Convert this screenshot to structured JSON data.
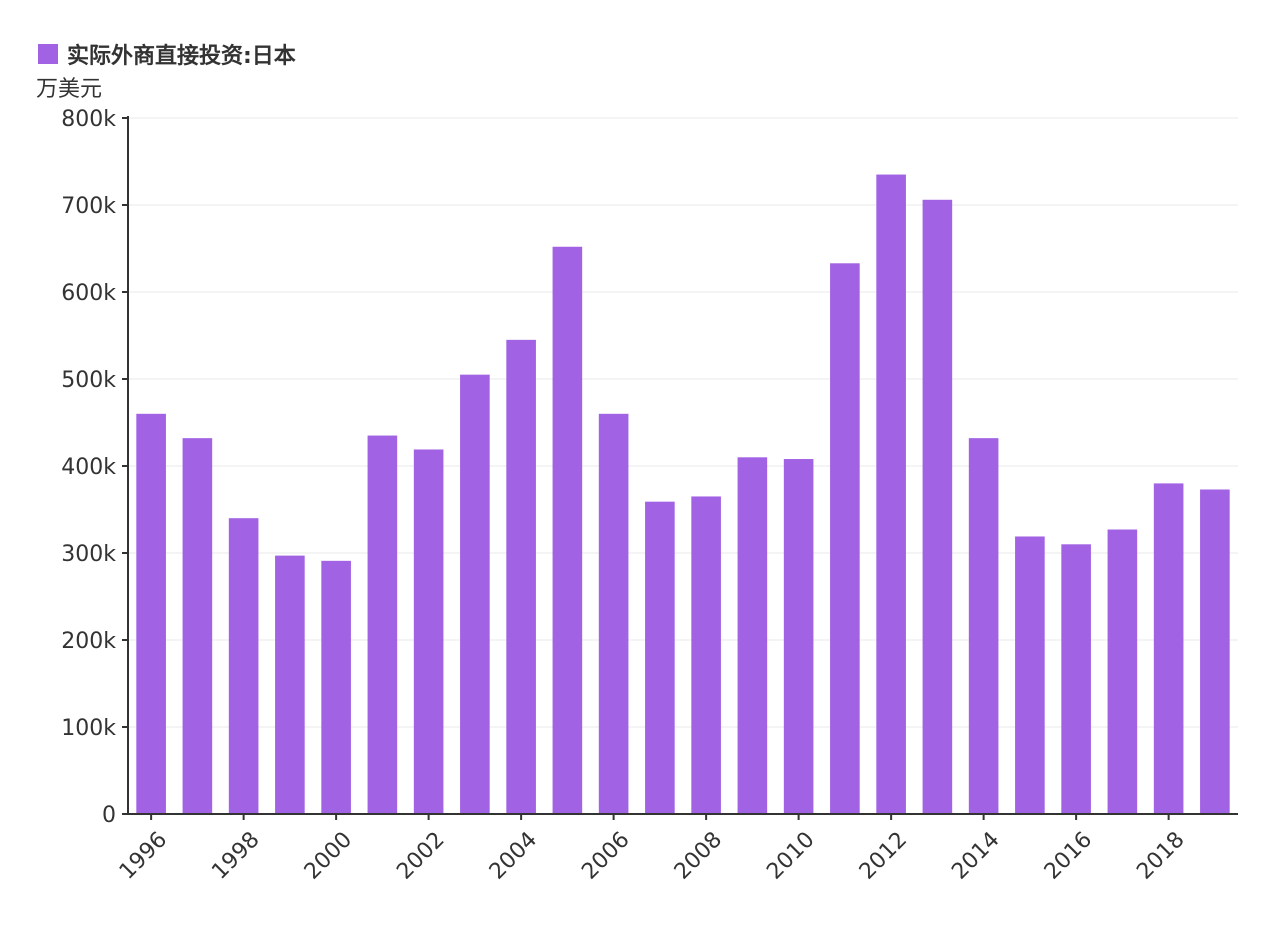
{
  "chart_data": {
    "type": "bar",
    "legend": {
      "label": "实际外商直接投资:日本",
      "color": "#a162e3",
      "placement": "top-left"
    },
    "unit_label": "万美元",
    "x": [
      1996,
      1997,
      1998,
      1999,
      2000,
      2001,
      2002,
      2003,
      2004,
      2005,
      2006,
      2007,
      2008,
      2009,
      2010,
      2011,
      2012,
      2013,
      2014,
      2015,
      2016,
      2017,
      2018,
      2019
    ],
    "x_tick_labels": [
      "1996",
      "1998",
      "2000",
      "2002",
      "2004",
      "2006",
      "2008",
      "2010",
      "2012",
      "2014",
      "2016",
      "2018"
    ],
    "series": [
      {
        "name": "实际外商直接投资:日本",
        "values": [
          460000,
          432000,
          340000,
          297000,
          291000,
          435000,
          419000,
          505000,
          545000,
          652000,
          460000,
          359000,
          365000,
          410000,
          408000,
          633000,
          735000,
          706000,
          432000,
          319000,
          310000,
          327000,
          380000,
          373000
        ]
      }
    ],
    "y_ticks": [
      0,
      100000,
      200000,
      300000,
      400000,
      500000,
      600000,
      700000,
      800000
    ],
    "y_tick_labels": [
      "0",
      "100k",
      "200k",
      "300k",
      "400k",
      "500k",
      "600k",
      "700k",
      "800k"
    ],
    "ylim": [
      0,
      800000
    ],
    "grid": true,
    "colors": {
      "bar": "#a162e3",
      "axis": "#333333",
      "grid": "#e8e8e8"
    }
  }
}
